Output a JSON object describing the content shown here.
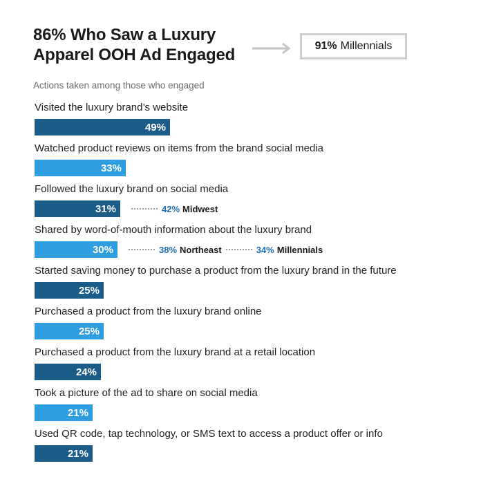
{
  "header": {
    "title_pct": "86%",
    "title_rest": "Who Saw a Luxury Apparel OOH Ad Engaged",
    "callout_value": "91%",
    "callout_label": "Millennials",
    "subtitle": "Actions taken among those who engaged"
  },
  "colors": {
    "dark": "#1c5c89",
    "light": "#2e9ee0",
    "accent_text": "#1f70b0"
  },
  "chart_data": {
    "type": "bar",
    "orientation": "horizontal",
    "title": "86% Who Saw a Luxury Apparel OOH Ad Engaged",
    "subtitle": "Actions taken among those who engaged",
    "xlim": [
      0,
      100
    ],
    "unit": "%",
    "categories": [
      "Visited the luxury brand’s website",
      "Watched product reviews on items from the brand social media",
      "Followed the luxury brand on social media",
      "Shared by word-of-mouth information about the luxury brand",
      "Started saving money to purchase a product from the luxury brand in the future",
      "Purchased a product from the luxury brand online",
      "Purchased a product from the luxury brand at a retail location",
      "Took a picture of the ad to share on social media",
      "Used QR code, tap technology, or SMS text to access a product offer or info"
    ],
    "values": [
      49,
      33,
      31,
      30,
      25,
      25,
      24,
      21,
      21
    ],
    "value_labels": [
      "49%",
      "33%",
      "31%",
      "30%",
      "25%",
      "25%",
      "24%",
      "21%",
      "21%"
    ],
    "bar_shades": [
      "dark",
      "light",
      "dark",
      "light",
      "dark",
      "light",
      "dark",
      "light",
      "dark"
    ],
    "annotations": [
      {
        "row": 2,
        "items": [
          {
            "value": "42%",
            "label": "Midwest"
          }
        ]
      },
      {
        "row": 3,
        "items": [
          {
            "value": "38%",
            "label": "Northeast"
          },
          {
            "value": "34%",
            "label": "Millennials"
          }
        ]
      }
    ]
  }
}
